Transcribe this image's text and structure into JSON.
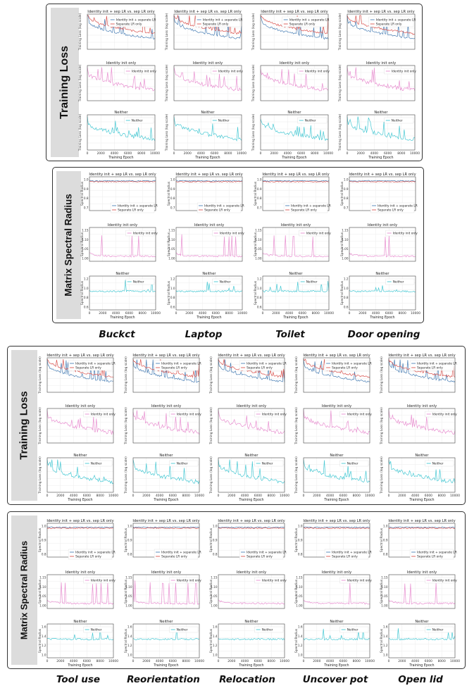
{
  "panels": {
    "p1": {
      "label": "Training Loss"
    },
    "p2": {
      "label": "Matrix Spectral Radius"
    },
    "p3": {
      "label": "Training Loss"
    },
    "p4": {
      "label": "Matrix Spectral Radius"
    }
  },
  "tasks_top": [
    "Buckct",
    "Laptop",
    "Toilet",
    "Door opening"
  ],
  "tasks_bottom": [
    "Tool use",
    "Reorientation",
    "Relocation",
    "Uncover pot",
    "Open lid"
  ],
  "colors": {
    "identity_sep": "#4a7fb5",
    "separate_only": "#d9534f",
    "identity_only": "#e88fd0",
    "neither": "#46c8d3"
  },
  "chart_data": [
    {
      "type": "line",
      "group": "training_loss_top",
      "metric": "Training Loss (log scale)",
      "xlabel": "Training Epoch",
      "ylabel": "Training Loss (log scale)",
      "xlim": [
        0,
        10000
      ],
      "xticks": [
        0,
        2000,
        4000,
        6000,
        8000,
        10000
      ],
      "rows": [
        {
          "title": "Identity init + sep LR  vs.  sep LR only",
          "series": [
            {
              "name": "Identity init + separate LR",
              "color": "#4a7fb5"
            },
            {
              "name": "Separate LR only",
              "color": "#d9534f"
            }
          ]
        },
        {
          "title": "Identity init only",
          "series": [
            {
              "name": "Identity init only",
              "color": "#e88fd0"
            }
          ]
        },
        {
          "title": "Neither",
          "series": [
            {
              "name": "Neither",
              "color": "#46c8d3"
            }
          ]
        }
      ],
      "tasks": [
        "Buckct",
        "Laptop",
        "Toilet",
        "Door opening"
      ]
    },
    {
      "type": "line",
      "group": "spectral_radius_top",
      "metric": "Spectral Radius",
      "xlabel": "Training Epoch",
      "ylabel": "Spectral Radius",
      "xlim": [
        0,
        10000
      ],
      "xticks": [
        0,
        2000,
        4000,
        6000,
        8000,
        10000
      ],
      "rows": [
        {
          "title": "Identity init + sep LR  vs.  sep LR only",
          "yticks": [
            "0.7",
            "0.8",
            "0.9",
            "1.0"
          ],
          "series": [
            {
              "name": "Identity init + separate LR",
              "color": "#4a7fb5"
            },
            {
              "name": "Separate LR only",
              "color": "#d9534f"
            }
          ]
        },
        {
          "title": "Identity init only",
          "yticks": [
            "1.00",
            "1.05",
            "1.10",
            "1.15"
          ],
          "series": [
            {
              "name": "Identity init only",
              "color": "#e88fd0"
            }
          ]
        },
        {
          "title": "Neither",
          "yticks": [
            "0.6",
            "0.8",
            "1.0",
            "1.2"
          ],
          "series": [
            {
              "name": "Neither",
              "color": "#46c8d3"
            }
          ]
        }
      ],
      "tasks": [
        "Buckct",
        "Laptop",
        "Toilet",
        "Door opening"
      ]
    },
    {
      "type": "line",
      "group": "training_loss_bottom",
      "metric": "Training Loss (log scale)",
      "xlabel": "Training Epoch",
      "ylabel": "Training Loss (log scale)",
      "xlim": [
        0,
        10000
      ],
      "xticks": [
        0,
        2000,
        4000,
        6000,
        8000,
        10000
      ],
      "rows": [
        {
          "title": "Identity init + sep LR  vs.  sep LR only",
          "series": [
            {
              "name": "Identity init + separate LR",
              "color": "#4a7fb5"
            },
            {
              "name": "Separate LR only",
              "color": "#d9534f"
            }
          ]
        },
        {
          "title": "Identity init only",
          "series": [
            {
              "name": "Identity init only",
              "color": "#e88fd0"
            }
          ]
        },
        {
          "title": "Neither",
          "series": [
            {
              "name": "Neither",
              "color": "#46c8d3"
            }
          ]
        }
      ],
      "tasks": [
        "Tool use",
        "Reorientation",
        "Relocation",
        "Uncover pot",
        "Open lid"
      ]
    },
    {
      "type": "line",
      "group": "spectral_radius_bottom",
      "metric": "Spectral Radius",
      "xlabel": "Training Epoch",
      "ylabel": "Spectral Radius",
      "xlim": [
        0,
        10000
      ],
      "xticks": [
        0,
        2000,
        4000,
        6000,
        8000,
        10000
      ],
      "rows": [
        {
          "title": "Identity init + sep LR  vs.  sep LR only",
          "yticks": [
            "0.8",
            "0.9",
            "1.0"
          ],
          "series": [
            {
              "name": "Identity init + separate LR",
              "color": "#4a7fb5"
            },
            {
              "name": "Separate LR only",
              "color": "#d9534f"
            }
          ]
        },
        {
          "title": "Identity init only",
          "yticks": [
            "1.00",
            "1.05",
            "1.10",
            "1.15"
          ],
          "series": [
            {
              "name": "Identity init only",
              "color": "#e88fd0"
            }
          ]
        },
        {
          "title": "Neither",
          "yticks": [
            "1.0",
            "1.2",
            "1.4",
            "1.6"
          ],
          "series": [
            {
              "name": "Neither",
              "color": "#46c8d3"
            }
          ]
        }
      ],
      "tasks": [
        "Tool use",
        "Reorientation",
        "Relocation",
        "Uncover pot",
        "Open lid"
      ]
    }
  ]
}
